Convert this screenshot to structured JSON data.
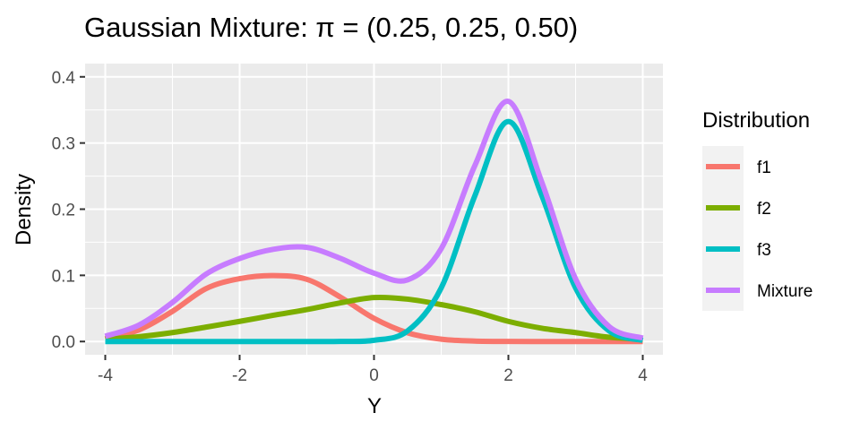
{
  "chart_data": {
    "type": "line",
    "title": "Gaussian Mixture: π  = (0.25, 0.25, 0.50)",
    "xlabel": "Y",
    "ylabel": "Density",
    "xlim": [
      -4.3,
      4.3
    ],
    "ylim": [
      -0.02,
      0.42
    ],
    "xticks": [
      -4,
      -2,
      0,
      2,
      4
    ],
    "xtick_labels": [
      "-4",
      "-2",
      "0",
      "2",
      "4"
    ],
    "yticks": [
      0.0,
      0.1,
      0.2,
      0.3,
      0.4
    ],
    "ytick_labels": [
      "0.0",
      "0.1",
      "0.2",
      "0.3",
      "0.4"
    ],
    "grid": true,
    "legend": {
      "title": "Distribution",
      "placement": "right"
    },
    "x": [
      -4,
      -3.5,
      -3,
      -2.5,
      -2,
      -1.5,
      -1,
      -0.5,
      0,
      0.5,
      1,
      1.5,
      2,
      2.5,
      3,
      3.5,
      4
    ],
    "series": [
      {
        "name": "f1",
        "color": "#F8766D",
        "values": [
          0.0044,
          0.0175,
          0.0456,
          0.08,
          0.095,
          0.0997,
          0.094,
          0.0671,
          0.035,
          0.0132,
          0.0035,
          0.0007,
          0.0001,
          0.0,
          0.0,
          0.0,
          0.0
        ]
      },
      {
        "name": "f2",
        "color": "#7CAE00",
        "values": [
          0.0035,
          0.0073,
          0.0135,
          0.0218,
          0.0304,
          0.0396,
          0.0483,
          0.0585,
          0.0665,
          0.064,
          0.0558,
          0.045,
          0.0304,
          0.02,
          0.0135,
          0.0065,
          0.0035
        ]
      },
      {
        "name": "f3",
        "color": "#00BFC4",
        "values": [
          0.0,
          0.0,
          0.0,
          0.0,
          0.0,
          0.0,
          0.0,
          0.0001,
          0.0018,
          0.016,
          0.081,
          0.22,
          0.3325,
          0.22,
          0.081,
          0.016,
          0.0018
        ]
      },
      {
        "name": "Mixture",
        "color": "#C77CFF",
        "values": [
          0.0079,
          0.0248,
          0.0591,
          0.1018,
          0.1254,
          0.1393,
          0.1423,
          0.1257,
          0.1033,
          0.0932,
          0.1403,
          0.2657,
          0.363,
          0.24,
          0.0945,
          0.0225,
          0.0053
        ]
      }
    ]
  }
}
